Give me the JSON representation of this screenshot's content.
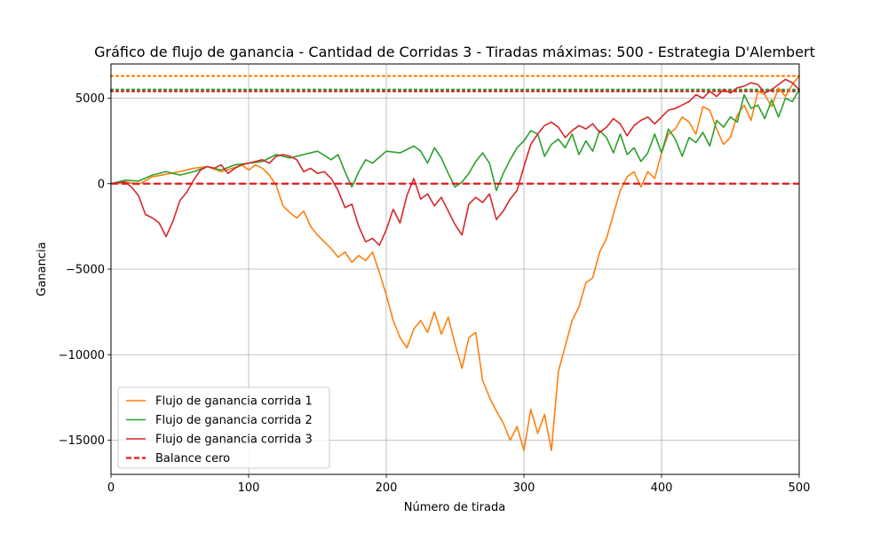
{
  "chart_data": {
    "type": "line",
    "title": "Gráfico de flujo de ganancia - Cantidad de Corridas 3 - Tiradas máximas: 500 - Estrategia D'Alembert",
    "xlabel": "Número de tirada",
    "ylabel": "Ganancia",
    "xlim": [
      0,
      500
    ],
    "ylim": [
      -17000,
      7000
    ],
    "x_ticks": [
      0,
      100,
      200,
      300,
      400,
      500
    ],
    "x_tick_labels": [
      "0",
      "100",
      "200",
      "300",
      "400",
      "500"
    ],
    "y_ticks": [
      5000,
      0,
      -5000,
      -10000,
      -15000
    ],
    "y_tick_labels": [
      "5000",
      "0",
      "−5000",
      "−10000",
      "−15000"
    ],
    "grid": true,
    "legend_position": "lower-left",
    "series": [
      {
        "name": "Flujo de ganancia corrida 1",
        "color": "#ff7f0e",
        "points": [
          [
            0,
            0
          ],
          [
            10,
            100
          ],
          [
            20,
            -50
          ],
          [
            30,
            400
          ],
          [
            40,
            550
          ],
          [
            50,
            700
          ],
          [
            60,
            900
          ],
          [
            70,
            1000
          ],
          [
            80,
            700
          ],
          [
            90,
            950
          ],
          [
            95,
            1100
          ],
          [
            100,
            800
          ],
          [
            105,
            1100
          ],
          [
            110,
            900
          ],
          [
            115,
            500
          ],
          [
            120,
            -100
          ],
          [
            125,
            -1300
          ],
          [
            130,
            -1700
          ],
          [
            135,
            -2000
          ],
          [
            140,
            -1600
          ],
          [
            145,
            -2500
          ],
          [
            150,
            -3000
          ],
          [
            155,
            -3400
          ],
          [
            160,
            -3800
          ],
          [
            165,
            -4300
          ],
          [
            170,
            -4000
          ],
          [
            175,
            -4600
          ],
          [
            180,
            -4200
          ],
          [
            185,
            -4500
          ],
          [
            190,
            -4000
          ],
          [
            195,
            -5200
          ],
          [
            200,
            -6500
          ],
          [
            205,
            -8000
          ],
          [
            210,
            -9000
          ],
          [
            215,
            -9600
          ],
          [
            220,
            -8500
          ],
          [
            225,
            -8000
          ],
          [
            230,
            -8700
          ],
          [
            235,
            -7500
          ],
          [
            240,
            -8800
          ],
          [
            245,
            -7800
          ],
          [
            250,
            -9400
          ],
          [
            255,
            -10800
          ],
          [
            260,
            -9000
          ],
          [
            265,
            -8700
          ],
          [
            270,
            -11500
          ],
          [
            275,
            -12500
          ],
          [
            280,
            -13300
          ],
          [
            285,
            -14000
          ],
          [
            290,
            -15000
          ],
          [
            295,
            -14200
          ],
          [
            300,
            -15600
          ],
          [
            305,
            -13200
          ],
          [
            310,
            -14600
          ],
          [
            315,
            -13500
          ],
          [
            320,
            -15600
          ],
          [
            325,
            -11000
          ],
          [
            330,
            -9500
          ],
          [
            335,
            -8000
          ],
          [
            340,
            -7200
          ],
          [
            345,
            -5800
          ],
          [
            350,
            -5500
          ],
          [
            355,
            -4000
          ],
          [
            360,
            -3200
          ],
          [
            365,
            -1800
          ],
          [
            370,
            -400
          ],
          [
            375,
            400
          ],
          [
            380,
            700
          ],
          [
            385,
            -200
          ],
          [
            390,
            700
          ],
          [
            395,
            300
          ],
          [
            400,
            1800
          ],
          [
            405,
            2900
          ],
          [
            410,
            3200
          ],
          [
            415,
            3900
          ],
          [
            420,
            3600
          ],
          [
            425,
            2900
          ],
          [
            430,
            4500
          ],
          [
            435,
            4300
          ],
          [
            440,
            3200
          ],
          [
            445,
            2300
          ],
          [
            450,
            2700
          ],
          [
            455,
            4000
          ],
          [
            460,
            4600
          ],
          [
            465,
            3700
          ],
          [
            470,
            5400
          ],
          [
            475,
            5200
          ],
          [
            480,
            4500
          ],
          [
            485,
            5600
          ],
          [
            490,
            5100
          ],
          [
            495,
            5800
          ],
          [
            500,
            6300
          ]
        ]
      },
      {
        "name": "Flujo de ganancia corrida 2",
        "color": "#2ca02c",
        "points": [
          [
            0,
            0
          ],
          [
            10,
            200
          ],
          [
            20,
            150
          ],
          [
            30,
            500
          ],
          [
            40,
            700
          ],
          [
            50,
            500
          ],
          [
            60,
            700
          ],
          [
            70,
            1000
          ],
          [
            80,
            800
          ],
          [
            90,
            1100
          ],
          [
            100,
            1200
          ],
          [
            110,
            1300
          ],
          [
            120,
            1700
          ],
          [
            130,
            1500
          ],
          [
            140,
            1700
          ],
          [
            150,
            1900
          ],
          [
            160,
            1400
          ],
          [
            165,
            1700
          ],
          [
            170,
            700
          ],
          [
            175,
            -200
          ],
          [
            180,
            700
          ],
          [
            185,
            1400
          ],
          [
            190,
            1200
          ],
          [
            200,
            1900
          ],
          [
            210,
            1800
          ],
          [
            220,
            2200
          ],
          [
            225,
            1900
          ],
          [
            230,
            1200
          ],
          [
            235,
            2100
          ],
          [
            240,
            1500
          ],
          [
            245,
            600
          ],
          [
            250,
            -200
          ],
          [
            255,
            100
          ],
          [
            260,
            600
          ],
          [
            265,
            1300
          ],
          [
            270,
            1800
          ],
          [
            275,
            1200
          ],
          [
            280,
            -400
          ],
          [
            285,
            600
          ],
          [
            290,
            1400
          ],
          [
            295,
            2100
          ],
          [
            300,
            2500
          ],
          [
            305,
            3100
          ],
          [
            310,
            2900
          ],
          [
            315,
            1600
          ],
          [
            320,
            2300
          ],
          [
            325,
            2600
          ],
          [
            330,
            2100
          ],
          [
            335,
            2900
          ],
          [
            340,
            1700
          ],
          [
            345,
            2500
          ],
          [
            350,
            1900
          ],
          [
            355,
            3100
          ],
          [
            360,
            2700
          ],
          [
            365,
            1800
          ],
          [
            370,
            2900
          ],
          [
            375,
            1700
          ],
          [
            380,
            2100
          ],
          [
            385,
            1300
          ],
          [
            390,
            1800
          ],
          [
            395,
            2900
          ],
          [
            400,
            1800
          ],
          [
            405,
            3200
          ],
          [
            410,
            2600
          ],
          [
            415,
            1600
          ],
          [
            420,
            2700
          ],
          [
            425,
            2400
          ],
          [
            430,
            3000
          ],
          [
            435,
            2200
          ],
          [
            440,
            3700
          ],
          [
            445,
            3300
          ],
          [
            450,
            3900
          ],
          [
            455,
            3600
          ],
          [
            460,
            5200
          ],
          [
            465,
            4400
          ],
          [
            470,
            4600
          ],
          [
            475,
            3800
          ],
          [
            480,
            4900
          ],
          [
            485,
            3900
          ],
          [
            490,
            5000
          ],
          [
            495,
            4800
          ],
          [
            500,
            5500
          ]
        ]
      },
      {
        "name": "Flujo de ganancia corrida 3",
        "color": "#d62728",
        "points": [
          [
            0,
            0
          ],
          [
            10,
            100
          ],
          [
            15,
            -200
          ],
          [
            20,
            -700
          ],
          [
            25,
            -1800
          ],
          [
            30,
            -2000
          ],
          [
            35,
            -2300
          ],
          [
            40,
            -3100
          ],
          [
            45,
            -2200
          ],
          [
            50,
            -1000
          ],
          [
            55,
            -500
          ],
          [
            60,
            200
          ],
          [
            65,
            800
          ],
          [
            70,
            1000
          ],
          [
            75,
            900
          ],
          [
            80,
            1100
          ],
          [
            85,
            600
          ],
          [
            90,
            900
          ],
          [
            95,
            1100
          ],
          [
            100,
            1200
          ],
          [
            105,
            1300
          ],
          [
            110,
            1400
          ],
          [
            115,
            1200
          ],
          [
            120,
            1600
          ],
          [
            125,
            1700
          ],
          [
            130,
            1600
          ],
          [
            135,
            1400
          ],
          [
            140,
            700
          ],
          [
            145,
            900
          ],
          [
            150,
            600
          ],
          [
            155,
            700
          ],
          [
            160,
            300
          ],
          [
            165,
            -400
          ],
          [
            170,
            -1400
          ],
          [
            175,
            -1200
          ],
          [
            180,
            -2500
          ],
          [
            185,
            -3400
          ],
          [
            190,
            -3200
          ],
          [
            195,
            -3600
          ],
          [
            200,
            -2700
          ],
          [
            205,
            -1500
          ],
          [
            210,
            -2300
          ],
          [
            215,
            -700
          ],
          [
            220,
            300
          ],
          [
            225,
            -900
          ],
          [
            230,
            -600
          ],
          [
            235,
            -1300
          ],
          [
            240,
            -800
          ],
          [
            245,
            -1600
          ],
          [
            250,
            -2400
          ],
          [
            255,
            -3000
          ],
          [
            260,
            -1200
          ],
          [
            265,
            -800
          ],
          [
            270,
            -1100
          ],
          [
            275,
            -600
          ],
          [
            280,
            -2100
          ],
          [
            285,
            -1600
          ],
          [
            290,
            -900
          ],
          [
            295,
            -400
          ],
          [
            300,
            1000
          ],
          [
            305,
            2300
          ],
          [
            310,
            2900
          ],
          [
            315,
            3400
          ],
          [
            320,
            3600
          ],
          [
            325,
            3300
          ],
          [
            330,
            2700
          ],
          [
            335,
            3100
          ],
          [
            340,
            3400
          ],
          [
            345,
            3200
          ],
          [
            350,
            3500
          ],
          [
            355,
            3000
          ],
          [
            360,
            3300
          ],
          [
            365,
            3800
          ],
          [
            370,
            3500
          ],
          [
            375,
            2800
          ],
          [
            380,
            3400
          ],
          [
            385,
            3700
          ],
          [
            390,
            3900
          ],
          [
            395,
            3500
          ],
          [
            400,
            3900
          ],
          [
            405,
            4300
          ],
          [
            410,
            4400
          ],
          [
            415,
            4600
          ],
          [
            420,
            4800
          ],
          [
            425,
            5200
          ],
          [
            430,
            5000
          ],
          [
            435,
            5400
          ],
          [
            440,
            5100
          ],
          [
            445,
            5500
          ],
          [
            450,
            5300
          ],
          [
            455,
            5600
          ],
          [
            460,
            5700
          ],
          [
            465,
            5900
          ],
          [
            470,
            5800
          ],
          [
            475,
            5300
          ],
          [
            480,
            5500
          ],
          [
            485,
            5800
          ],
          [
            490,
            6100
          ],
          [
            495,
            5900
          ],
          [
            500,
            5500
          ]
        ]
      },
      {
        "name": "Balance cero",
        "color": "#e31a1c",
        "dashed": true,
        "points": [
          [
            0,
            0
          ],
          [
            500,
            0
          ]
        ]
      }
    ],
    "reference_lines": [
      {
        "y": 6300,
        "color": "#ff7f0e"
      },
      {
        "y": 5500,
        "color": "#2ca02c"
      },
      {
        "y": 5400,
        "color": "#d62728"
      }
    ]
  }
}
